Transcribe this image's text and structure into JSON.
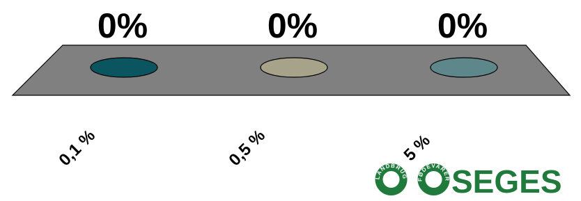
{
  "chart_data": {
    "type": "bar",
    "categories": [
      "0,1 %",
      "0,5 %",
      "5 %"
    ],
    "values": [
      0,
      0,
      0
    ],
    "value_labels": [
      "0%",
      "0%",
      "0%"
    ],
    "colors": [
      "#0b5560",
      "#a7a38b",
      "#5e878c"
    ]
  },
  "logo": {
    "name": "SEGES",
    "ring_left": "LANDBRUG",
    "ring_right": "FØDEVARER"
  }
}
